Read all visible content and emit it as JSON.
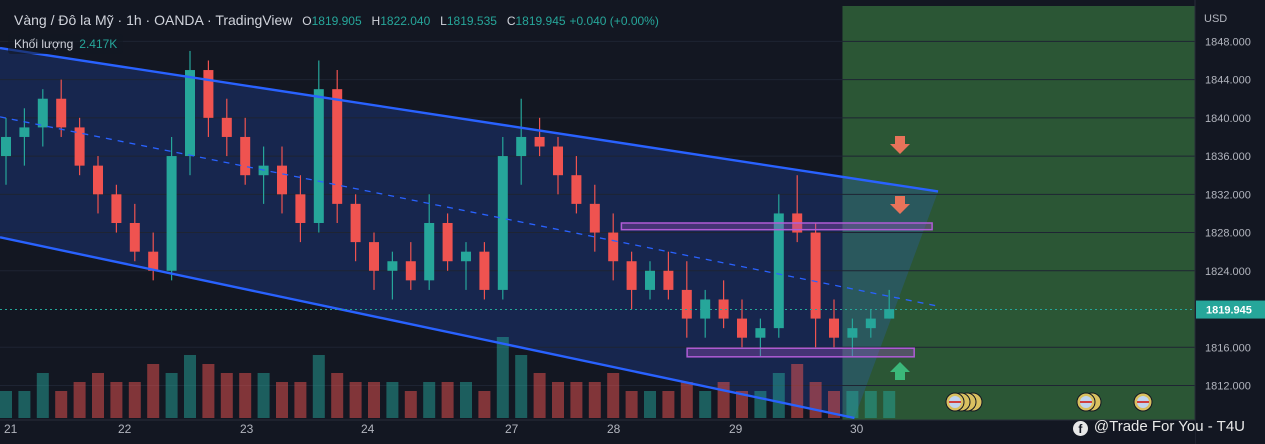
{
  "header": {
    "symbol": "Vàng / Đô la Mỹ",
    "interval": "1h",
    "broker": "OANDA",
    "platform": "TradingView",
    "ohlc": [
      {
        "k": "O",
        "v": "1819.905"
      },
      {
        "k": "H",
        "v": "1822.040"
      },
      {
        "k": "L",
        "v": "1819.535"
      },
      {
        "k": "C",
        "v": "1819.945"
      }
    ],
    "change": "+0.040 (+0.00%)"
  },
  "volume": {
    "label": "Khối lượng",
    "value": "2.417K"
  },
  "watermark": "@Trade For You - T4U",
  "colors": {
    "up": "#26a69a",
    "down": "#ef5350",
    "channel": "#2962ff",
    "target_zone": "#4caf50",
    "zone_border": "#b05cd6",
    "arrow_down": "#e8735a",
    "arrow_up": "#3bb87a"
  },
  "chart_data": {
    "type": "candlestick",
    "currency": "USD",
    "last_price": "1819.945",
    "y_ticks": [
      "1848.000",
      "1844.000",
      "1840.000",
      "1836.000",
      "1832.000",
      "1828.000",
      "1824.000",
      "1816.000",
      "1812.000"
    ],
    "ylim": [
      1808.6,
      1851.7
    ],
    "x_ticks": [
      "21",
      "22",
      "23",
      "24",
      "27",
      "28",
      "29",
      "30"
    ],
    "candles": [
      [
        1836,
        1840,
        1833,
        1838
      ],
      [
        1838,
        1841,
        1835,
        1839
      ],
      [
        1839,
        1843,
        1837,
        1842
      ],
      [
        1842,
        1844,
        1838,
        1839
      ],
      [
        1839,
        1840,
        1834,
        1835
      ],
      [
        1835,
        1836,
        1830,
        1832
      ],
      [
        1832,
        1833,
        1828,
        1829
      ],
      [
        1829,
        1831,
        1825,
        1826
      ],
      [
        1826,
        1828,
        1823,
        1824
      ],
      [
        1824,
        1838,
        1823,
        1836
      ],
      [
        1836,
        1847,
        1834,
        1845
      ],
      [
        1845,
        1846,
        1838,
        1840
      ],
      [
        1840,
        1842,
        1836,
        1838
      ],
      [
        1838,
        1840,
        1833,
        1834
      ],
      [
        1834,
        1837,
        1831,
        1835
      ],
      [
        1835,
        1837,
        1830,
        1832
      ],
      [
        1832,
        1834,
        1827,
        1829
      ],
      [
        1829,
        1846,
        1828,
        1843
      ],
      [
        1843,
        1845,
        1829,
        1831
      ],
      [
        1831,
        1832,
        1825,
        1827
      ],
      [
        1827,
        1828,
        1822,
        1824
      ],
      [
        1824,
        1826,
        1821,
        1825
      ],
      [
        1825,
        1827,
        1822,
        1823
      ],
      [
        1823,
        1832,
        1822,
        1829
      ],
      [
        1829,
        1830,
        1824,
        1825
      ],
      [
        1825,
        1827,
        1822,
        1826
      ],
      [
        1826,
        1827,
        1821,
        1822
      ],
      [
        1822,
        1838,
        1821,
        1836
      ],
      [
        1836,
        1842,
        1833,
        1838
      ],
      [
        1838,
        1840,
        1836,
        1837
      ],
      [
        1837,
        1838,
        1832,
        1834
      ],
      [
        1834,
        1836,
        1830,
        1831
      ],
      [
        1831,
        1833,
        1826,
        1828
      ],
      [
        1828,
        1830,
        1823,
        1825
      ],
      [
        1825,
        1826,
        1820,
        1822
      ],
      [
        1822,
        1825,
        1821,
        1824
      ],
      [
        1824,
        1826,
        1821,
        1822
      ],
      [
        1822,
        1825,
        1817,
        1819
      ],
      [
        1819,
        1822,
        1817,
        1821
      ],
      [
        1821,
        1823,
        1818,
        1819
      ],
      [
        1819,
        1821,
        1816,
        1817
      ],
      [
        1817,
        1819,
        1815,
        1818
      ],
      [
        1818,
        1832,
        1817,
        1830
      ],
      [
        1830,
        1834,
        1827,
        1828
      ],
      [
        1828,
        1829,
        1816,
        1819
      ],
      [
        1819,
        1821,
        1816,
        1817
      ],
      [
        1817,
        1819,
        1815,
        1818
      ],
      [
        1818,
        1820,
        1817,
        1819
      ],
      [
        1819,
        1822,
        1819,
        1820
      ]
    ],
    "volume_scale": 10,
    "volumes": [
      3,
      3,
      5,
      3,
      4,
      5,
      4,
      4,
      6,
      5,
      7,
      6,
      5,
      5,
      5,
      4,
      4,
      7,
      5,
      4,
      4,
      4,
      3,
      4,
      4,
      4,
      3,
      9,
      7,
      5,
      4,
      4,
      4,
      5,
      3,
      3,
      3,
      4,
      3,
      4,
      3,
      3,
      5,
      6,
      4,
      3,
      3,
      3,
      3
    ],
    "channel": {
      "upper": [
        [
          0,
          1847.3
        ],
        [
          0.785,
          1832.3
        ]
      ],
      "lower": [
        [
          0,
          1827.5
        ],
        [
          0.715,
          1808.6
        ]
      ],
      "mid": [
        [
          0,
          1840.1
        ],
        [
          0.785,
          1820.3
        ]
      ]
    },
    "zones": [
      {
        "from": 0.52,
        "to": 0.78,
        "lo": 1828.3,
        "hi": 1829.0
      },
      {
        "from": 0.575,
        "to": 0.765,
        "lo": 1815.0,
        "hi": 1815.9
      }
    ],
    "target_zone_from": 0.705
  }
}
